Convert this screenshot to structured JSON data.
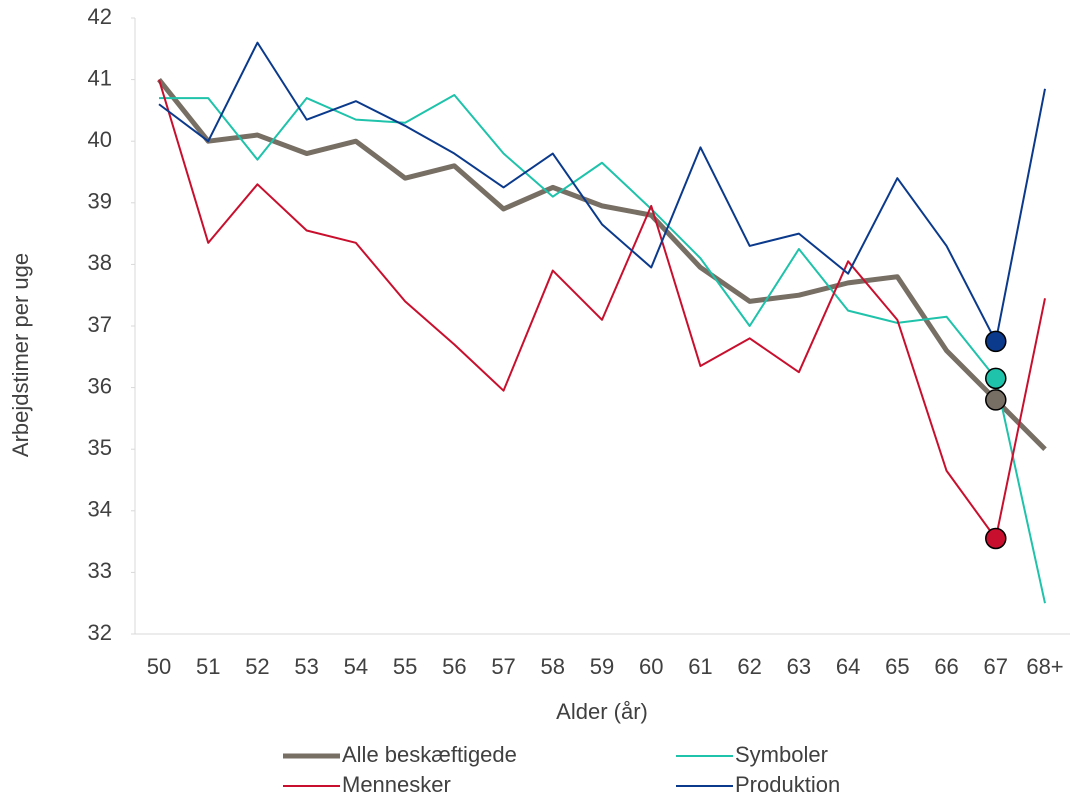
{
  "chart_data": {
    "type": "line",
    "xlabel": "Alder (år)",
    "ylabel": "Arbejdstimer per uge",
    "categories": [
      "50",
      "51",
      "52",
      "53",
      "54",
      "55",
      "56",
      "57",
      "58",
      "59",
      "60",
      "61",
      "62",
      "63",
      "64",
      "65",
      "66",
      "67",
      "68+"
    ],
    "highlight": "67",
    "ylim": [
      32,
      42
    ],
    "yticks": [
      32,
      33,
      34,
      35,
      36,
      37,
      38,
      39,
      40,
      41,
      42
    ],
    "series": [
      {
        "name": "Alle beskæftigede",
        "color": "#776e64",
        "width": 5,
        "values": [
          41.0,
          40.0,
          40.1,
          39.8,
          40.0,
          39.4,
          39.6,
          38.9,
          39.25,
          38.95,
          38.8,
          37.95,
          37.4,
          37.5,
          37.7,
          37.8,
          36.6,
          35.8,
          35.0
        ]
      },
      {
        "name": "Symboler",
        "color": "#1fc2aa",
        "width": 2,
        "values": [
          40.7,
          40.7,
          39.7,
          40.7,
          40.35,
          40.3,
          40.75,
          39.8,
          39.1,
          39.65,
          38.9,
          38.1,
          37.0,
          38.25,
          37.25,
          37.05,
          37.15,
          36.15,
          32.5
        ]
      },
      {
        "name": "Mennesker",
        "color": "#c8102e",
        "width": 2,
        "values": [
          41.0,
          38.35,
          39.3,
          38.55,
          38.35,
          37.4,
          36.7,
          35.95,
          37.9,
          37.1,
          38.95,
          36.35,
          36.8,
          36.25,
          38.05,
          37.1,
          34.65,
          33.55,
          37.45
        ]
      },
      {
        "name": "Produktion",
        "color": "#0b3a8c",
        "width": 2,
        "values": [
          40.6,
          40.0,
          41.6,
          40.35,
          40.65,
          40.25,
          39.8,
          39.25,
          39.8,
          38.65,
          37.95,
          39.9,
          38.3,
          38.5,
          37.85,
          39.4,
          38.3,
          36.75,
          40.85
        ]
      }
    ]
  }
}
